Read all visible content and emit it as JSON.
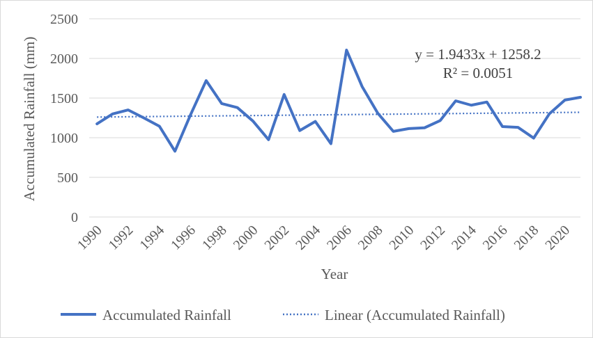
{
  "chart_data": {
    "type": "line",
    "xlabel": "Year",
    "ylabel": "Accumulated Rainfall (mm)",
    "ylim": [
      0,
      2500
    ],
    "y_ticks": [
      0,
      500,
      1000,
      1500,
      2000,
      2500
    ],
    "x_tick_labels": [
      "1990",
      "1992",
      "1994",
      "1996",
      "1998",
      "2000",
      "2002",
      "2004",
      "2006",
      "2008",
      "2010",
      "2012",
      "2014",
      "2016",
      "2018",
      "2020"
    ],
    "grid": "horizontal",
    "legend_position": "bottom",
    "x": [
      1990,
      1991,
      1992,
      1993,
      1994,
      1995,
      1996,
      1997,
      1998,
      1999,
      2000,
      2001,
      2002,
      2003,
      2004,
      2005,
      2006,
      2007,
      2008,
      2009,
      2010,
      2011,
      2012,
      2013,
      2014,
      2015,
      2016,
      2017,
      2018,
      2019,
      2020,
      2021
    ],
    "series": [
      {
        "name": "Accumulated Rainfall",
        "color": "#4472c4",
        "style": "solid",
        "values": [
          1175,
          1300,
          1350,
          1250,
          1145,
          830,
          1290,
          1720,
          1430,
          1380,
          1210,
          975,
          1545,
          1090,
          1205,
          925,
          2105,
          1645,
          1310,
          1080,
          1115,
          1125,
          1215,
          1465,
          1410,
          1450,
          1140,
          1130,
          995,
          1300,
          1475,
          1510
        ]
      },
      {
        "name": "Linear (Accumulated Rainfall)",
        "color": "#4472c4",
        "style": "dotted",
        "trend": {
          "slope": 1.9433,
          "intercept": 1258.2
        }
      }
    ],
    "equation_line1": "y = 1.9433x + 1258.2",
    "equation_line2": "R² = 0.0051"
  }
}
